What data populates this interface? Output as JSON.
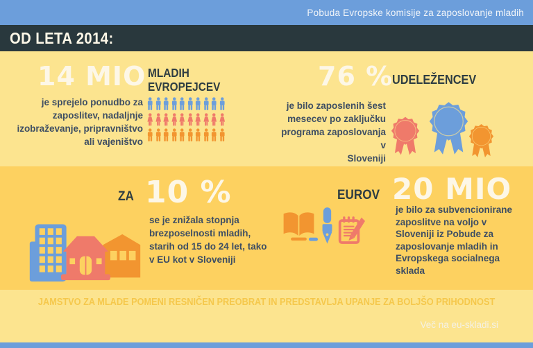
{
  "colors": {
    "top-bar-blue": "#6c9edb",
    "dark-slate": "#29383d",
    "yellow-light": "#fce48f",
    "yellow-dark": "#fdd160",
    "headline-yellow": "#f5c84c",
    "off-white": "#fdf7e7",
    "heading-dark": "#2e3d42",
    "body-text": "#3e4e63",
    "icon-blue": "#6c9edb",
    "icon-salmon": "#ef7a6a",
    "icon-orange": "#f29530"
  },
  "header": {
    "banner": "Pobuda Evropske komisije za zaposlovanje mladih",
    "title": "OD LETA 2014:"
  },
  "stats": {
    "youth": {
      "value": "14 MIO",
      "label": "MLADIH\nEVROPEJCEV",
      "description": "je sprejelo ponudbo za\nzaposlitev, nadaljnje\nizobraževanje, pripravništvo\nali vajeništvo",
      "pictogram_rows": [
        {
          "shape": "male",
          "color_key": "icon-blue",
          "count": 10
        },
        {
          "shape": "female",
          "color_key": "icon-salmon",
          "count": 10
        },
        {
          "shape": "male",
          "color_key": "icon-orange",
          "count": 10
        }
      ]
    },
    "participants": {
      "value": "76 %",
      "label": "UDELEŽENCEV",
      "description": "je bilo zaposlenih šest\nmesecev po zaključku\nprograma zaposlovanja v\nSloveniji"
    },
    "unemployment": {
      "prefix": "ZA",
      "value": "10 %",
      "description": "se je znižala stopnja\nbrezposelnosti mladih,\nstarih od 15 do 24 let, tako\nv EU kot v Sloveniji"
    },
    "funding": {
      "prefix": "EUROV",
      "value": "20 MIO",
      "description": "je bilo za subvencionirane\nzaposlitve na voljo v\nSloveniji iz Pobude za\nzaposlovanje mladih in\nEvropskega socialnega\nsklada"
    }
  },
  "footer": {
    "headline": "JAMSTVO ZA MLADE POMENI RESNIČEN PREOBRAT IN PREDSTAVLJA UPANJE ZA BOLJŠO PRIHODNOST",
    "website": "Več na eu-skladi.si"
  }
}
